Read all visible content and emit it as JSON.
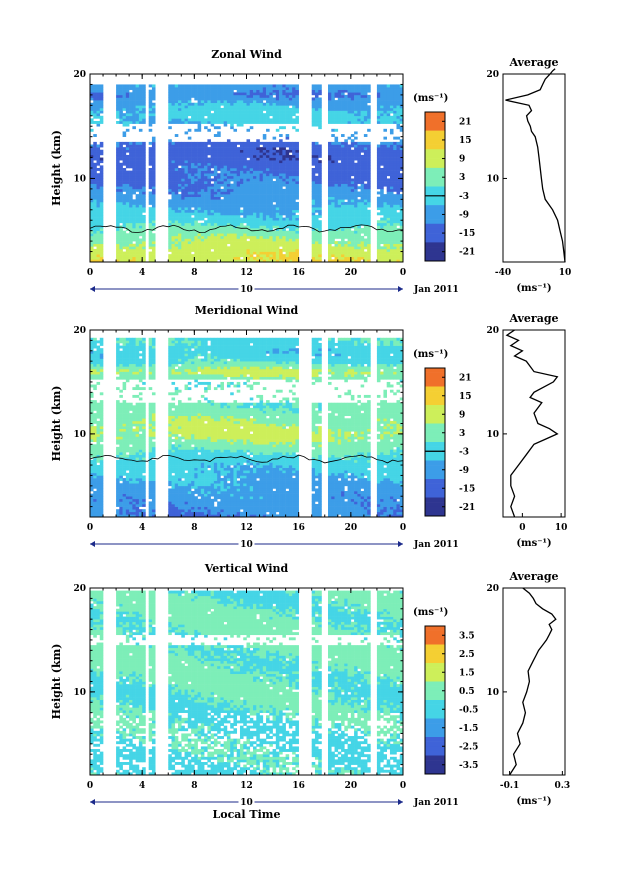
{
  "chart_data": [
    {
      "type": "heatmap",
      "title": "Zonal Wind",
      "ylabel": "Height (km)",
      "x_ticks": [
        "0",
        "4",
        "8",
        "12",
        "16",
        "20",
        "0"
      ],
      "y_ticks": [
        "20",
        "10"
      ],
      "ylim": [
        2,
        20
      ],
      "xlim": [
        0,
        24
      ],
      "date_day": "10",
      "date_label": "Jan 2011",
      "colorbar": {
        "unit": "(ms⁻¹)",
        "ticks": [
          "21",
          "15",
          "9",
          "3",
          "-3",
          "-9",
          "-15",
          "-21"
        ],
        "range": [
          -24,
          24
        ]
      },
      "profile_by_height": [
        {
          "h": 2,
          "v": 12
        },
        {
          "h": 3,
          "v": 10
        },
        {
          "h": 4,
          "v": 6
        },
        {
          "h": 5,
          "v": 2
        },
        {
          "h": 6,
          "v": -3
        },
        {
          "h": 7,
          "v": -6
        },
        {
          "h": 8,
          "v": -9
        },
        {
          "h": 9,
          "v": -11
        },
        {
          "h": 10,
          "v": -13
        },
        {
          "h": 11,
          "v": -14
        },
        {
          "h": 12,
          "v": -16
        },
        {
          "h": 13,
          "v": -15
        },
        {
          "h": 14,
          "v": -10
        },
        {
          "h": 15,
          "v": -6
        },
        {
          "h": 16,
          "v": -3
        },
        {
          "h": 17,
          "v": -6
        },
        {
          "h": 18,
          "v": -12
        },
        {
          "h": 19,
          "v": -8
        },
        {
          "h": 20,
          "v": -2
        }
      ],
      "average": {
        "title": "Average",
        "xlabel": "(ms⁻¹)",
        "x_ticks": [
          "-40",
          "10"
        ],
        "xlim": [
          -40,
          10
        ],
        "y_ticks": [
          "20",
          "10"
        ],
        "x": [
          10,
          9,
          8,
          6,
          4,
          0,
          -6,
          -8,
          -9,
          -10,
          -11,
          -12,
          -14,
          -17,
          -18,
          -20,
          -21,
          -17,
          -19,
          -38,
          -20,
          -10,
          -8,
          -6,
          -2,
          0,
          2
        ],
        "y": [
          2,
          3,
          4,
          5,
          6,
          7,
          8,
          9,
          10,
          11,
          12,
          13,
          14,
          14.5,
          15,
          15.5,
          16,
          16.5,
          17,
          17.5,
          18,
          18.5,
          19,
          19.5,
          20,
          20.3,
          20.5
        ]
      }
    },
    {
      "type": "heatmap",
      "title": "Meridional Wind",
      "ylabel": "Height (km)",
      "x_ticks": [
        "0",
        "4",
        "8",
        "12",
        "16",
        "20",
        "0"
      ],
      "y_ticks": [
        "20",
        "10"
      ],
      "ylim": [
        2,
        20
      ],
      "xlim": [
        0,
        24
      ],
      "date_day": "10",
      "date_label": "Jan 2011",
      "colorbar": {
        "unit": "(ms⁻¹)",
        "ticks": [
          "21",
          "15",
          "9",
          "3",
          "-3",
          "-9",
          "-15",
          "-21"
        ],
        "range": [
          -24,
          24
        ]
      },
      "profile_by_height": [
        {
          "h": 2,
          "v": -12
        },
        {
          "h": 3,
          "v": -10
        },
        {
          "h": 4,
          "v": -9
        },
        {
          "h": 5,
          "v": -8
        },
        {
          "h": 6,
          "v": -6
        },
        {
          "h": 7,
          "v": -4
        },
        {
          "h": 8,
          "v": -1
        },
        {
          "h": 9,
          "v": 4
        },
        {
          "h": 10,
          "v": 8
        },
        {
          "h": 11,
          "v": 6
        },
        {
          "h": 12,
          "v": 3
        },
        {
          "h": 13,
          "v": 1
        },
        {
          "h": 14,
          "v": 3
        },
        {
          "h": 15,
          "v": 1
        },
        {
          "h": 16,
          "v": 8
        },
        {
          "h": 17,
          "v": -2
        },
        {
          "h": 18,
          "v": -4
        },
        {
          "h": 19,
          "v": -1
        },
        {
          "h": 20,
          "v": -4
        }
      ],
      "average": {
        "title": "Average",
        "xlabel": "(ms⁻¹)",
        "x_ticks": [
          "0",
          "10"
        ],
        "xlim": [
          -5,
          11
        ],
        "y_ticks": [
          "20",
          "10"
        ],
        "x": [
          -2,
          -3,
          -2,
          -3,
          -3,
          -1,
          1,
          3,
          6,
          9,
          7,
          4,
          3,
          5,
          2,
          3,
          8,
          9,
          3,
          1,
          -2,
          0,
          -3,
          -1,
          -4,
          -2
        ],
        "y": [
          2,
          3,
          4,
          5,
          6,
          7,
          8,
          9,
          9.5,
          10,
          10.5,
          11,
          12,
          13,
          13.5,
          14,
          15,
          15.5,
          16,
          17,
          17.5,
          18,
          18.5,
          19,
          19.5,
          20
        ]
      }
    },
    {
      "type": "heatmap",
      "title": "Vertical Wind",
      "ylabel": "Height (km)",
      "x_ticks": [
        "0",
        "4",
        "8",
        "12",
        "16",
        "20",
        "0"
      ],
      "xlabel": "Local Time",
      "y_ticks": [
        "20",
        "10"
      ],
      "ylim": [
        2,
        20
      ],
      "xlim": [
        0,
        24
      ],
      "date_day": "10",
      "date_label": "Jan 2011",
      "colorbar": {
        "unit": "(ms⁻¹)",
        "ticks": [
          "3.5",
          "2.5",
          "1.5",
          "0.5",
          "-0.5",
          "-1.5",
          "-2.5",
          "-3.5"
        ],
        "range": [
          -4,
          4
        ]
      },
      "profile_by_height": [
        {
          "h": 2,
          "v": -0.3
        },
        {
          "h": 4,
          "v": -0.2
        },
        {
          "h": 6,
          "v": -0.1
        },
        {
          "h": 8,
          "v": 0.0
        },
        {
          "h": 10,
          "v": 0.05
        },
        {
          "h": 12,
          "v": 0.1
        },
        {
          "h": 14,
          "v": 0.2
        },
        {
          "h": 16,
          "v": 0.25
        },
        {
          "h": 18,
          "v": 0.1
        },
        {
          "h": 20,
          "v": 0.0
        }
      ],
      "average": {
        "title": "Average",
        "xlabel": "(ms⁻¹)",
        "x_ticks": [
          "-0.1",
          "0.3"
        ],
        "xlim": [
          -0.15,
          0.32
        ],
        "y_ticks": [
          "20",
          "10"
        ],
        "x": [
          -0.1,
          -0.05,
          -0.07,
          -0.02,
          -0.04,
          0.0,
          0.02,
          0.0,
          0.03,
          0.05,
          0.04,
          0.08,
          0.1,
          0.12,
          0.15,
          0.18,
          0.2,
          0.22,
          0.2,
          0.25,
          0.22,
          0.15,
          0.1,
          0.08,
          0.05,
          0.0
        ],
        "y": [
          2,
          3,
          4,
          5,
          6,
          7,
          8,
          9,
          10,
          11,
          12,
          13,
          13.5,
          14,
          14.5,
          15,
          15.5,
          16,
          16.5,
          17,
          17.5,
          18,
          18.5,
          19,
          19.5,
          20
        ]
      }
    }
  ]
}
